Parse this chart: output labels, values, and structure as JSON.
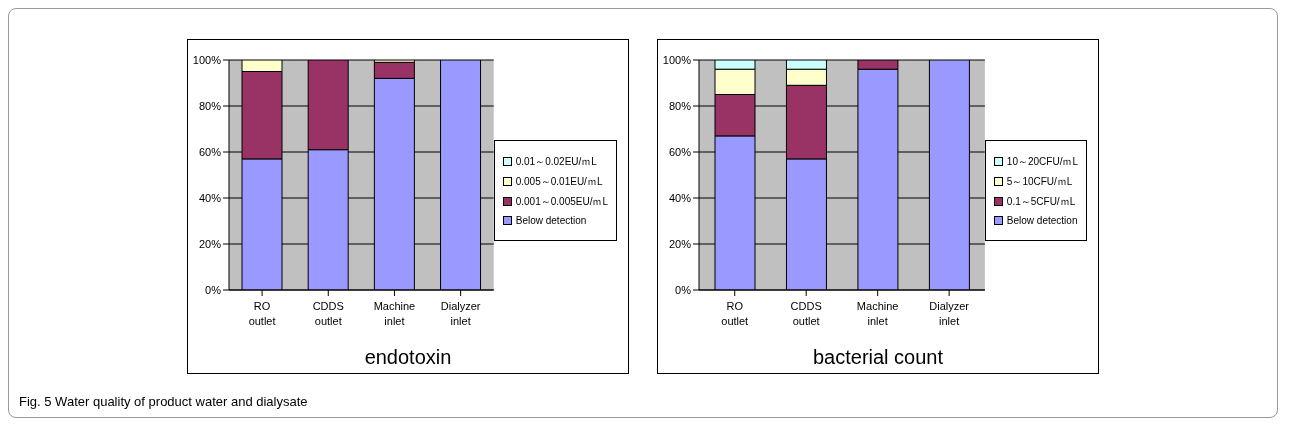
{
  "chart_data": [
    {
      "type": "bar",
      "title": "endotoxin",
      "stacked": true,
      "legend": "right",
      "grid": "y",
      "categories": [
        "RO outlet",
        "CDDS outlet",
        "Machine inlet",
        "Dialyzer inlet"
      ],
      "ylim": [
        0,
        100
      ],
      "yticks": [
        {
          "value": 0,
          "label": "0%"
        },
        {
          "value": 20,
          "label": "20%"
        },
        {
          "value": 40,
          "label": "40%"
        },
        {
          "value": 60,
          "label": "60%"
        },
        {
          "value": 80,
          "label": "80%"
        },
        {
          "value": 100,
          "label": "100%"
        }
      ],
      "series": [
        {
          "name": "Below detection",
          "color": "#9999ff",
          "values": [
            57,
            61,
            92,
            100
          ]
        },
        {
          "name": "0.001～0.005EU/ｍL",
          "color": "#993366",
          "values": [
            38,
            39,
            7,
            0
          ]
        },
        {
          "name": "0.005～0.01EU/ｍL",
          "color": "#ffffcc",
          "values": [
            5,
            0,
            1,
            0
          ]
        },
        {
          "name": "0.01～0.02EU/ｍL",
          "color": "#ccffff",
          "values": [
            0,
            0,
            0,
            0
          ]
        }
      ],
      "annotations": [
        "Fig. 5 Water quality of product water and dialysate"
      ]
    },
    {
      "type": "bar",
      "title": "bacterial count",
      "stacked": true,
      "legend": "right",
      "grid": "y",
      "categories": [
        "RO outlet",
        "CDDS outlet",
        "Machine inlet",
        "Dialyzer inlet"
      ],
      "ylim": [
        0,
        100
      ],
      "yticks": [
        {
          "value": 0,
          "label": "0%"
        },
        {
          "value": 20,
          "label": "20%"
        },
        {
          "value": 40,
          "label": "40%"
        },
        {
          "value": 60,
          "label": "60%"
        },
        {
          "value": 80,
          "label": "80%"
        },
        {
          "value": 100,
          "label": "100%"
        }
      ],
      "series": [
        {
          "name": "Below detection",
          "color": "#9999ff",
          "values": [
            67,
            57,
            96,
            100
          ]
        },
        {
          "name": "0.1～5CFU/ｍL",
          "color": "#993366",
          "values": [
            18,
            32,
            4,
            0
          ]
        },
        {
          "name": "5～10CFU/ｍL",
          "color": "#ffffcc",
          "values": [
            11,
            7,
            0,
            0
          ]
        },
        {
          "name": "10～20CFU/ｍL",
          "color": "#ccffff",
          "values": [
            4,
            4,
            0,
            0
          ]
        }
      ]
    }
  ]
}
